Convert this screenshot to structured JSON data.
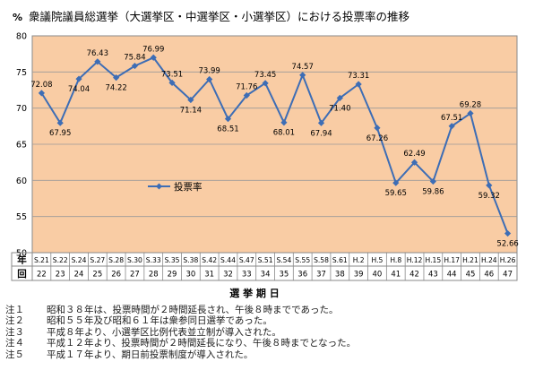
{
  "chart_data": {
    "type": "line",
    "title": "衆議院議員総選挙（大選挙区・中選挙区・小選挙区）における投票率の推移",
    "ylabel": "%",
    "xlabel": "選 挙 期 日",
    "ylim": [
      50,
      80
    ],
    "yticks": [
      50,
      55,
      60,
      65,
      70,
      75,
      80
    ],
    "grid": true,
    "legend_position": "left-middle",
    "plot_bg": "#F9CCA4",
    "line_color": "#3D6DB5",
    "row_header_year": "年",
    "row_header_round": "回",
    "categories": [
      "S.21",
      "S.22",
      "S.24",
      "S.27",
      "S.28",
      "S.30",
      "S.33",
      "S.35",
      "S.38",
      "S.42",
      "S.44",
      "S.47",
      "S.51",
      "S.54",
      "S.55",
      "S.58",
      "S.61",
      "H.2",
      "H.5",
      "H.8",
      "H.12",
      "H.15",
      "H.17",
      "H.21",
      "H.24",
      "H.26"
    ],
    "rounds": [
      "22",
      "23",
      "24",
      "25",
      "26",
      "27",
      "28",
      "29",
      "30",
      "31",
      "32",
      "33",
      "34",
      "35",
      "36",
      "37",
      "38",
      "39",
      "40",
      "41",
      "42",
      "43",
      "44",
      "45",
      "46",
      "47"
    ],
    "series": [
      {
        "name": "投票率",
        "values": [
          72.08,
          67.95,
          74.04,
          76.43,
          74.22,
          75.84,
          76.99,
          73.51,
          71.14,
          73.99,
          68.51,
          71.76,
          73.45,
          68.01,
          74.57,
          67.94,
          71.4,
          73.31,
          67.26,
          59.65,
          62.49,
          59.86,
          67.51,
          69.28,
          59.32,
          52.66
        ],
        "labels": [
          "72.08",
          "67.95",
          "74.04",
          "76.43",
          "74.22",
          "75.84",
          "76.99",
          "73.51",
          "71.14",
          "73.99",
          "68.51",
          "71.76",
          "73.45",
          "68.01",
          "74.57",
          "67.94",
          "71.40",
          "73.31",
          "67.26",
          "59.65",
          "62.49",
          "59.86",
          "67.51",
          "69.28",
          "59.32",
          "52.66"
        ],
        "label_side": [
          "above",
          "below",
          "below",
          "above",
          "below",
          "above",
          "above",
          "above",
          "below",
          "above",
          "below",
          "above",
          "above",
          "below",
          "above",
          "below",
          "below",
          "above",
          "below",
          "below",
          "above",
          "below",
          "above",
          "above",
          "below",
          "below"
        ]
      }
    ]
  },
  "notes": [
    {
      "label": "注１",
      "text": "昭和３８年は、投票時間が２時間延長され、午後８時までであった。"
    },
    {
      "label": "注２",
      "text": "昭和５５年及び昭和６１年は衆参同日選挙であった。"
    },
    {
      "label": "注３",
      "text": "平成８年より、小選挙区比例代表並立制が導入された。"
    },
    {
      "label": "注４",
      "text": "平成１２年より、投票時間が２時間延長になり、午後８時までとなった。"
    },
    {
      "label": "注５",
      "text": "平成１７年より、期日前投票制度が導入された。"
    }
  ]
}
